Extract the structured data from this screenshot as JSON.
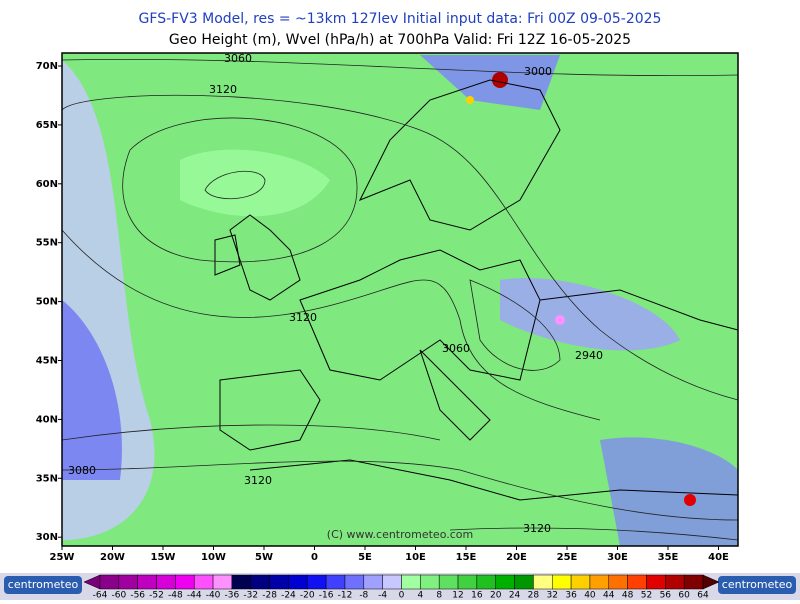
{
  "header": {
    "line1": "GFS-FV3 Model, res = ~13km 127lev   Initial input data: Fri 00Z 09-05-2025",
    "line2": "Geo Height (m), Wvel (hPa/h) at 700hPa  Valid: Fri 12Z 16-05-2025"
  },
  "axes": {
    "lat_labels": [
      "70N",
      "65N",
      "60N",
      "55N",
      "50N",
      "45N",
      "40N",
      "35N",
      "30N"
    ],
    "lon_labels": [
      "25W",
      "20W",
      "15W",
      "10W",
      "5W",
      "0",
      "5E",
      "10E",
      "15E",
      "20E",
      "25E",
      "30E",
      "35E",
      "40E"
    ]
  },
  "contour_labels": [
    "3060",
    "3120",
    "3000",
    "3120",
    "3060",
    "2940",
    "3080",
    "3120",
    "3120"
  ],
  "copyright": "(C) www.centrometeo.com",
  "logo": "centrometeo",
  "colorbar": {
    "labels": [
      "-64",
      "-60",
      "-56",
      "-52",
      "-48",
      "-44",
      "-40",
      "-36",
      "-32",
      "-28",
      "-24",
      "-20",
      "-16",
      "-12",
      "-8",
      "-4",
      "0",
      "4",
      "8",
      "12",
      "16",
      "20",
      "24",
      "28",
      "32",
      "36",
      "40",
      "44",
      "48",
      "52",
      "56",
      "60",
      "64"
    ],
    "colors": [
      "#7a007a",
      "#8b008b",
      "#a000a0",
      "#c000c0",
      "#d800d8",
      "#f000f0",
      "#ff50ff",
      "#ff90ff",
      "#000050",
      "#000080",
      "#0000a8",
      "#0000d0",
      "#1010f0",
      "#4040ff",
      "#7070ff",
      "#a0a0ff",
      "#c8c8ff",
      "#a0ffa0",
      "#80f080",
      "#60e060",
      "#40d040",
      "#20c020",
      "#00b000",
      "#009800",
      "#ffff80",
      "#ffff00",
      "#ffd000",
      "#ffa000",
      "#ff7000",
      "#ff4000",
      "#e00000",
      "#b00000",
      "#800000",
      "#500000"
    ]
  }
}
